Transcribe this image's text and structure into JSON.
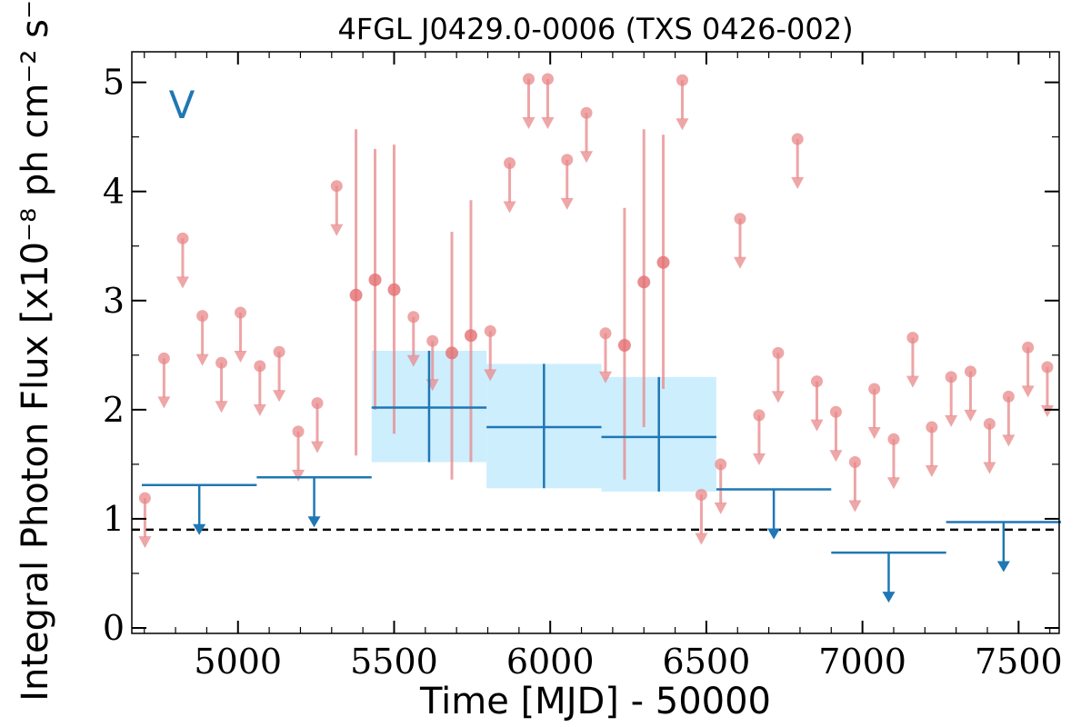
{
  "chart_data": {
    "type": "scatter",
    "title": "4FGL J0429.0-0006 (TXS 0426-002)",
    "annotation": "V",
    "xlabel": "Time [MJD] - 50000",
    "ylabel": "Integral Photon Flux [x10⁻⁸ ph cm⁻² s⁻¹]",
    "xlim": [
      4660,
      7630
    ],
    "ylim": [
      -0.05,
      5.28
    ],
    "xticks": [
      5000,
      5500,
      6000,
      6500,
      7000,
      7500
    ],
    "yticks": [
      0,
      1,
      2,
      3,
      4,
      5
    ],
    "xtick_labels": [
      "5000",
      "5500",
      "6000",
      "6500",
      "7000",
      "7500"
    ],
    "ytick_labels": [
      "0",
      "1",
      "2",
      "3",
      "4",
      "5"
    ],
    "grid": false,
    "reference_line": {
      "y": 0.9,
      "style": "dashed"
    },
    "colors": {
      "fine": "#e8888a",
      "coarse": "#1f77b4",
      "band": "#cdeefd",
      "reference": "#000000"
    },
    "series": [
      {
        "points": [
          {
            "x": 4702,
            "y": 1.19,
            "ul": true
          },
          {
            "x": 4763,
            "y": 2.47,
            "ul": true
          },
          {
            "x": 4823,
            "y": 3.57,
            "ul": true
          },
          {
            "x": 4886,
            "y": 2.86,
            "ul": true
          },
          {
            "x": 4947,
            "y": 2.43,
            "ul": true
          },
          {
            "x": 5008,
            "y": 2.89,
            "ul": true
          },
          {
            "x": 5070,
            "y": 2.4,
            "ul": true
          },
          {
            "x": 5132,
            "y": 2.53,
            "ul": true
          },
          {
            "x": 5193,
            "y": 1.8,
            "ul": true
          },
          {
            "x": 5254,
            "y": 2.06,
            "ul": true
          },
          {
            "x": 5316,
            "y": 4.05,
            "ul": true
          },
          {
            "x": 5378,
            "y": 3.05,
            "err": [
              1.58,
              4.57
            ]
          },
          {
            "x": 5439,
            "y": 3.19,
            "err": [
              2.0,
              4.39
            ]
          },
          {
            "x": 5500,
            "y": 3.1,
            "err": [
              1.78,
              4.43
            ]
          },
          {
            "x": 5562,
            "y": 2.85,
            "ul": true
          },
          {
            "x": 5623,
            "y": 2.63,
            "ul": true
          },
          {
            "x": 5685,
            "y": 2.52,
            "err": [
              1.36,
              3.63
            ]
          },
          {
            "x": 5746,
            "y": 2.68,
            "err": [
              1.52,
              3.92
            ]
          },
          {
            "x": 5808,
            "y": 2.72,
            "ul": true
          },
          {
            "x": 5870,
            "y": 4.26,
            "ul": true
          },
          {
            "x": 5931,
            "y": 5.03,
            "ul": true
          },
          {
            "x": 5992,
            "y": 5.03,
            "ul": true
          },
          {
            "x": 6054,
            "y": 4.29,
            "ul": true
          },
          {
            "x": 6116,
            "y": 4.72,
            "ul": true
          },
          {
            "x": 6177,
            "y": 2.7,
            "ul": true
          },
          {
            "x": 6238,
            "y": 2.59,
            "err": [
              1.36,
              3.85
            ]
          },
          {
            "x": 6300,
            "y": 3.17,
            "err": [
              1.84,
              4.57
            ]
          },
          {
            "x": 6362,
            "y": 3.35,
            "err": [
              2.19,
              4.52
            ]
          },
          {
            "x": 6423,
            "y": 5.02,
            "ul": true
          },
          {
            "x": 6484,
            "y": 1.22,
            "ul": true
          },
          {
            "x": 6546,
            "y": 1.5,
            "ul": true
          },
          {
            "x": 6608,
            "y": 3.75,
            "ul": true
          },
          {
            "x": 6669,
            "y": 1.95,
            "ul": true
          },
          {
            "x": 6730,
            "y": 2.52,
            "ul": true
          },
          {
            "x": 6792,
            "y": 4.48,
            "ul": true
          },
          {
            "x": 6854,
            "y": 2.26,
            "ul": true
          },
          {
            "x": 6915,
            "y": 1.98,
            "ul": true
          },
          {
            "x": 6976,
            "y": 1.52,
            "ul": true
          },
          {
            "x": 7038,
            "y": 2.19,
            "ul": true
          },
          {
            "x": 7100,
            "y": 1.73,
            "ul": true
          },
          {
            "x": 7161,
            "y": 2.66,
            "ul": true
          },
          {
            "x": 7222,
            "y": 1.84,
            "ul": true
          },
          {
            "x": 7284,
            "y": 2.3,
            "ul": true
          },
          {
            "x": 7346,
            "y": 2.35,
            "ul": true
          },
          {
            "x": 7407,
            "y": 1.87,
            "ul": true
          },
          {
            "x": 7468,
            "y": 2.12,
            "ul": true
          },
          {
            "x": 7530,
            "y": 2.57,
            "ul": true
          },
          {
            "x": 7592,
            "y": 2.39,
            "ul": true
          }
        ]
      },
      {
        "bins": [
          {
            "x0": 4692,
            "x1": 5060,
            "y": 1.31,
            "ul": true
          },
          {
            "x0": 5060,
            "x1": 5428,
            "y": 1.38,
            "ul": true
          },
          {
            "x0": 5428,
            "x1": 5796,
            "y": 2.02,
            "err": [
              1.52,
              2.54
            ]
          },
          {
            "x0": 5796,
            "x1": 6164,
            "y": 1.84,
            "err": [
              1.28,
              2.42
            ]
          },
          {
            "x0": 6164,
            "x1": 6532,
            "y": 1.75,
            "err": [
              1.25,
              2.3
            ]
          },
          {
            "x0": 6532,
            "x1": 6900,
            "y": 1.27,
            "ul": true
          },
          {
            "x0": 6900,
            "x1": 7268,
            "y": 0.69,
            "ul": true
          },
          {
            "x0": 7268,
            "x1": 7636,
            "y": 0.97,
            "ul": true
          }
        ]
      }
    ]
  }
}
